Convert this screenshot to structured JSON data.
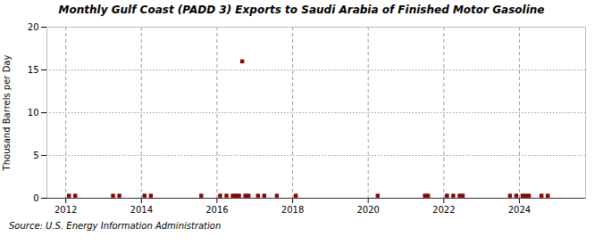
{
  "chart_data": {
    "type": "scatter",
    "title": "Monthly Gulf Coast (PADD 3) Exports to Saudi Arabia of Finished Motor Gasoline",
    "ylabel": "Thousand Barrels per Day",
    "source": "Source: U.S. Energy Information Administration",
    "x": [
      2012.083,
      2012.25,
      2013.25,
      2013.417,
      2014.083,
      2014.25,
      2015.583,
      2016.083,
      2016.25,
      2016.417,
      2016.5,
      2016.583,
      2016.667,
      2016.75,
      2016.833,
      2017.083,
      2017.25,
      2017.583,
      2018.083,
      2020.25,
      2021.5,
      2021.583,
      2022.083,
      2022.25,
      2022.417,
      2022.5,
      2023.75,
      2023.917,
      2024.083,
      2024.167,
      2024.25,
      2024.583,
      2024.75
    ],
    "values": [
      0.3,
      0.3,
      0.3,
      0.3,
      0.3,
      0.3,
      0.3,
      0.3,
      0.3,
      0.3,
      0.3,
      0.3,
      16.0,
      0.3,
      0.3,
      0.3,
      0.3,
      0.3,
      0.3,
      0.3,
      0.3,
      0.3,
      0.3,
      0.3,
      0.3,
      0.3,
      0.3,
      0.3,
      0.3,
      0.3,
      0.3,
      0.3,
      0.3
    ],
    "color": "#8b0000",
    "marker": "square",
    "xlim": [
      2011.5,
      2025.75
    ],
    "xticks": [
      2012,
      2014,
      2016,
      2018,
      2020,
      2022,
      2024
    ],
    "ylim": [
      0,
      20
    ],
    "yticks": [
      0,
      5,
      10,
      15,
      20
    ],
    "grid": true
  }
}
